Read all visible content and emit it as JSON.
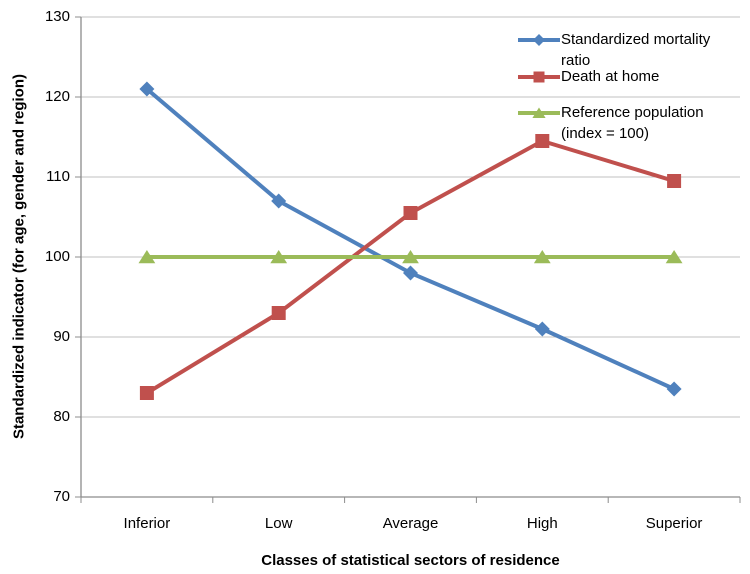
{
  "chart_data": {
    "type": "line",
    "categories": [
      "Inferior",
      "Low",
      "Average",
      "High",
      "Superior"
    ],
    "series": [
      {
        "name": "Standardized mortality ratio",
        "color": "#4F81BD",
        "marker": "diamond",
        "values": [
          121,
          107,
          98,
          91,
          83.5
        ]
      },
      {
        "name": "Death at home",
        "color": "#C0504D",
        "marker": "square",
        "values": [
          83,
          93,
          105.5,
          114.5,
          109.5
        ]
      },
      {
        "name": "Reference population (index = 100)",
        "color": "#9BBB59",
        "marker": "triangle",
        "values": [
          100,
          100,
          100,
          100,
          100
        ]
      }
    ],
    "xlabel": "Classes of statistical sectors of residence",
    "ylabel": "Standardized indicator (for age, gender and region)",
    "ylim": [
      70,
      130
    ],
    "ytick_step": 10,
    "grid": "horizontal",
    "legend_position": "top-right-inside",
    "colors": {
      "grid": "#C0C0C0",
      "axis": "#8C8C8C",
      "text": "#000000",
      "background": "#FFFFFF"
    }
  }
}
